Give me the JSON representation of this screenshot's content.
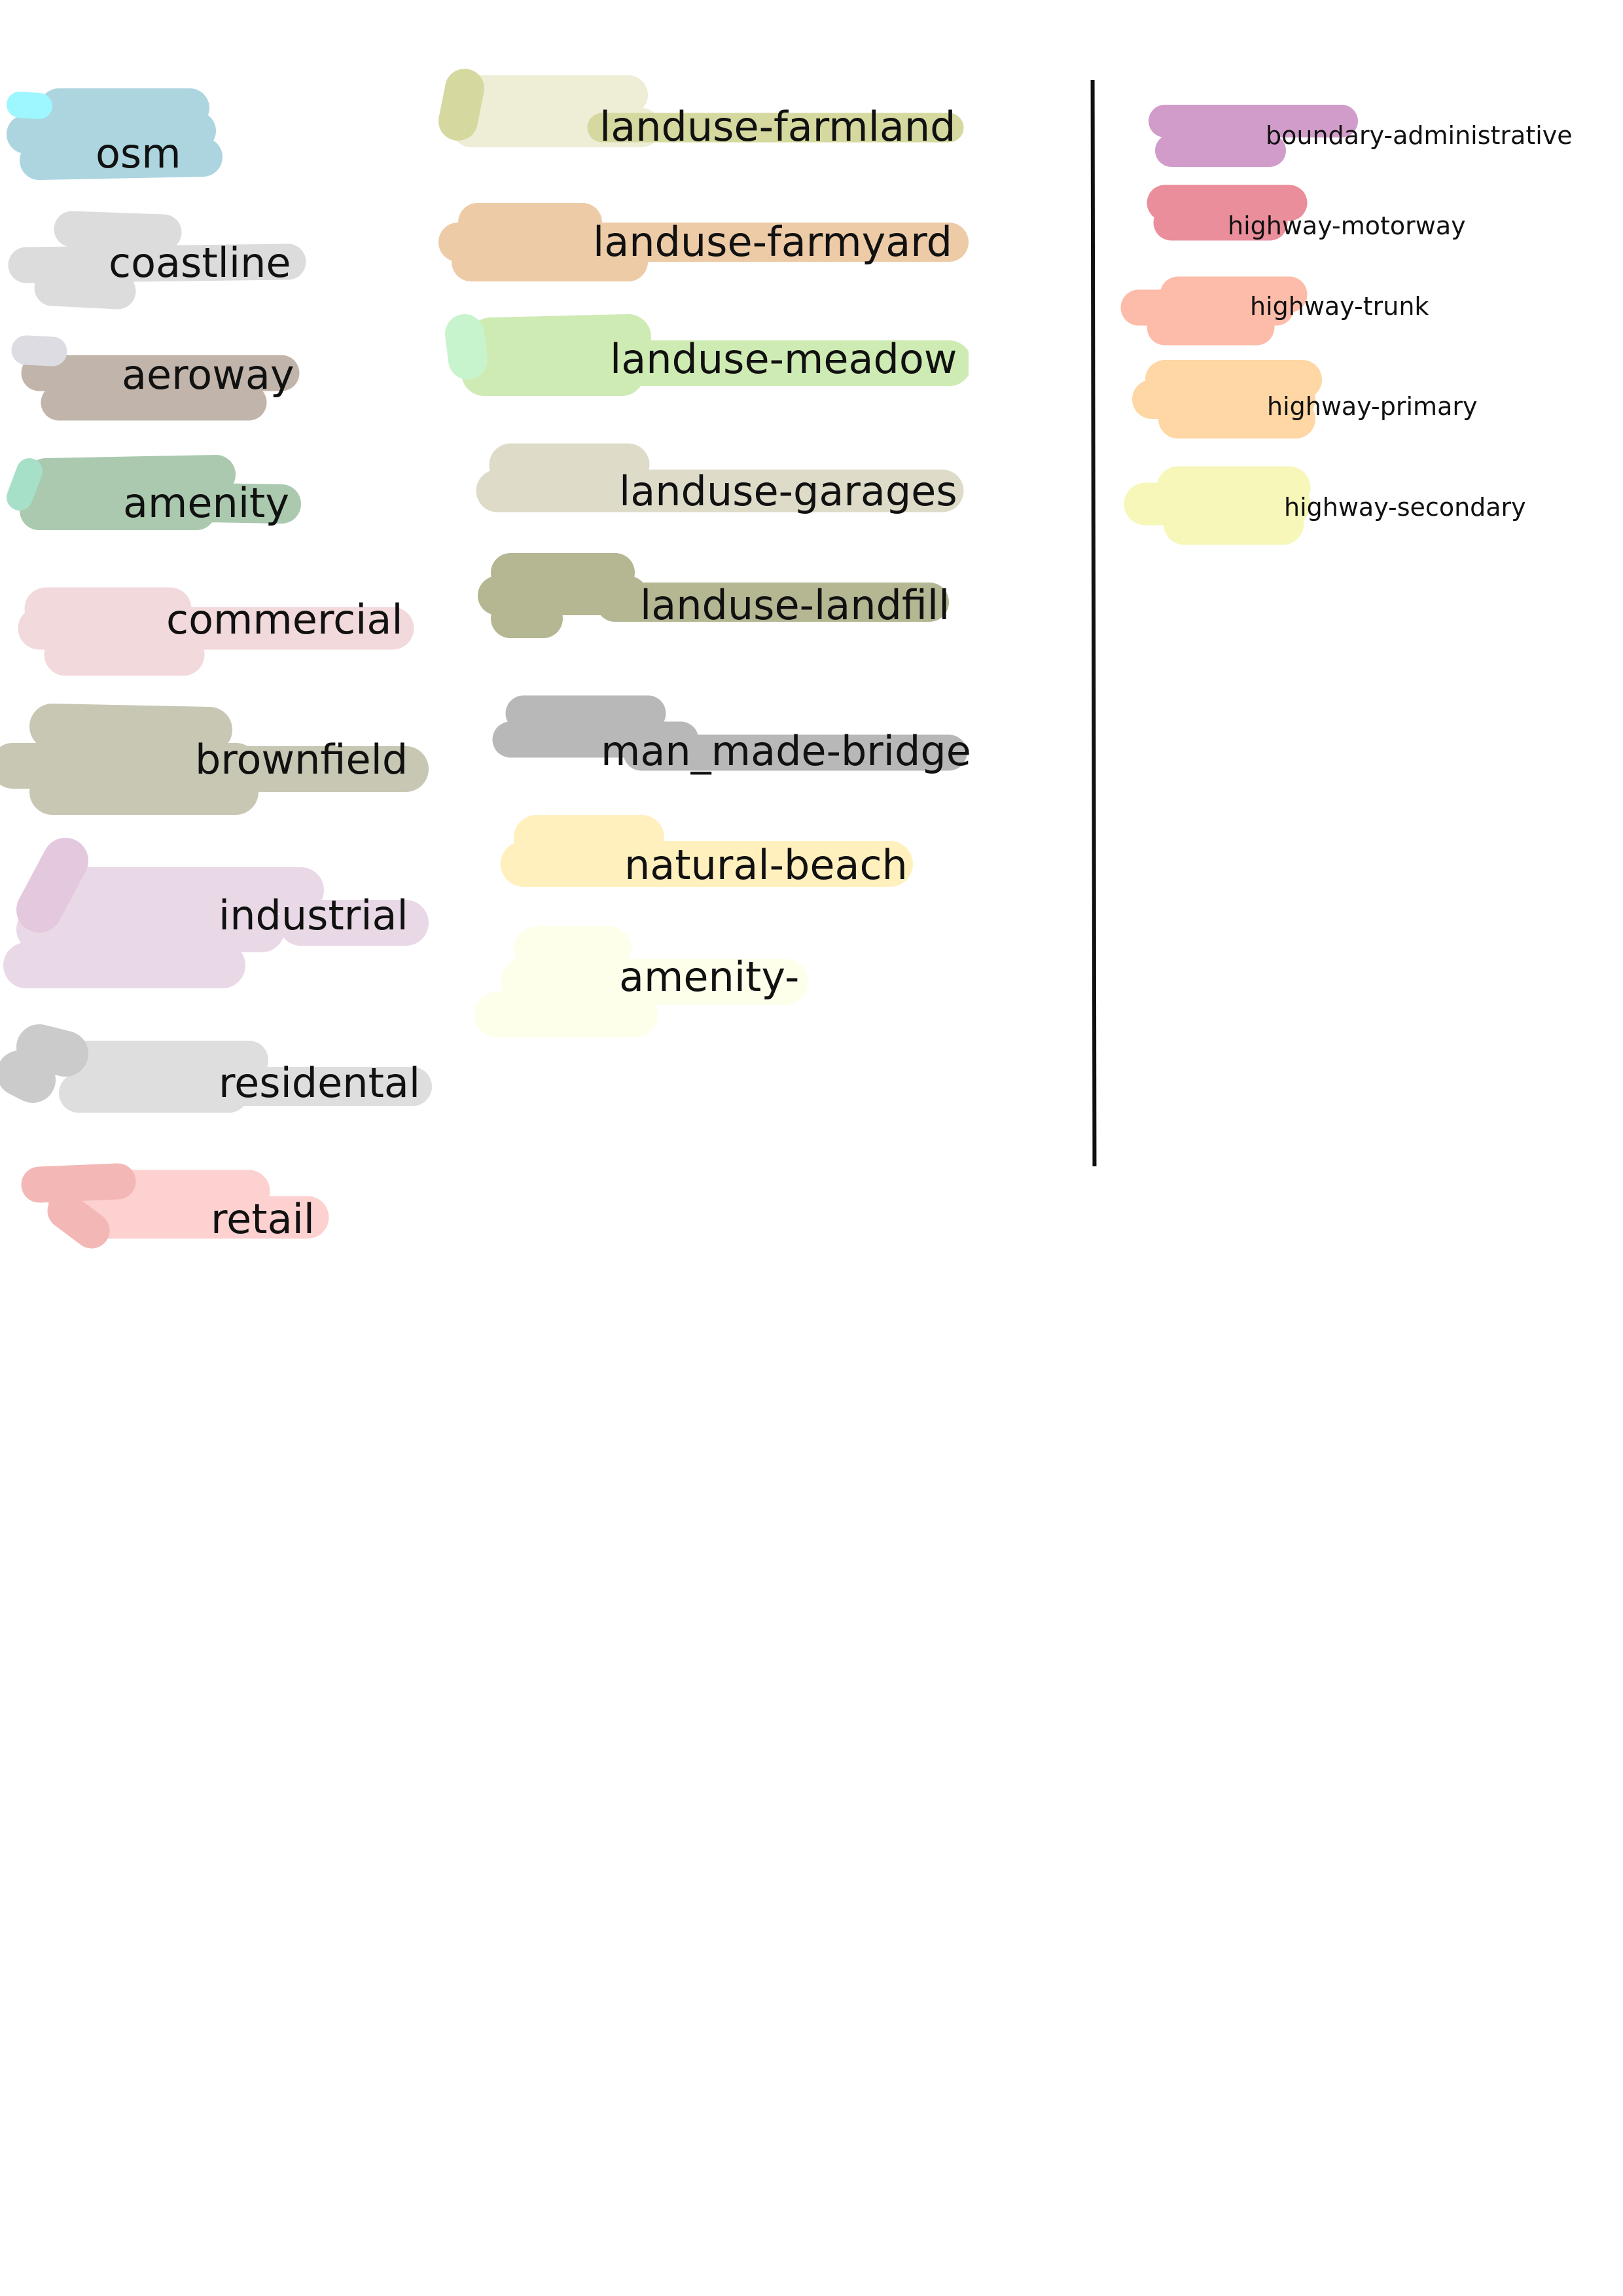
{
  "legend": {
    "column_1": [
      {
        "id": "osm",
        "label": "osm",
        "color": "#acd5e0",
        "accent_color": "#9ef7ff"
      },
      {
        "id": "coastline",
        "label": "coastline",
        "color": "#dcdcdc"
      },
      {
        "id": "aeroway",
        "label": "aeroway",
        "color": "#c1b4aa",
        "accent_color": "#dcdce2"
      },
      {
        "id": "amenity",
        "label": "amenity",
        "color": "#aac9ae",
        "accent_color": "#a6e0c8"
      },
      {
        "id": "commercial",
        "label": "commercial",
        "color": "#f2d9db"
      },
      {
        "id": "brownfield",
        "label": "brownfield",
        "color": "#c8c7b4"
      },
      {
        "id": "industrial",
        "label": "industrial",
        "color": "#e9d9e6",
        "accent_color": "#e4c9de"
      },
      {
        "id": "residental",
        "label": "residental",
        "color": "#dedede",
        "accent_color": "#cbcbcb"
      },
      {
        "id": "retail",
        "label": "retail",
        "color": "#fdd1d0",
        "accent_color": "#f3b8b6"
      }
    ],
    "column_2": [
      {
        "id": "landuse-farmland",
        "label": "landuse-farmland",
        "color": "#eeeed7",
        "accent_color": "#d6d99f"
      },
      {
        "id": "landuse-farmyard",
        "label": "landuse-farmyard",
        "color": "#edcba7"
      },
      {
        "id": "landuse-meadow",
        "label": "landuse-meadow",
        "color": "#cfebb4",
        "accent_color": "#c7f4cc"
      },
      {
        "id": "landuse-garages",
        "label": "landuse-garages",
        "color": "#dedcc9"
      },
      {
        "id": "landuse-landfill",
        "label": "landuse-landfill",
        "color": "#b5b692"
      },
      {
        "id": "man_made-bridge",
        "label": "man_made-bridge",
        "color": "#b8b8b8"
      },
      {
        "id": "natural-beach",
        "label": "natural-beach",
        "color": "#fff0be"
      },
      {
        "id": "amenity-",
        "label": "amenity-",
        "color": "#fdffea"
      }
    ],
    "column_3": [
      {
        "id": "boundary-administrative",
        "label": "boundary-administrative",
        "color": "#d19cca"
      },
      {
        "id": "highway-motorway",
        "label": "highway-motorway",
        "color": "#eb8e9c"
      },
      {
        "id": "highway-trunk",
        "label": "highway-trunk",
        "color": "#fcbca9"
      },
      {
        "id": "highway-primary",
        "label": "highway-primary",
        "color": "#fed7a4"
      },
      {
        "id": "highway-secondary",
        "label": "highway-secondary",
        "color": "#f6f7b9"
      }
    ]
  },
  "divider_color": "#111111"
}
